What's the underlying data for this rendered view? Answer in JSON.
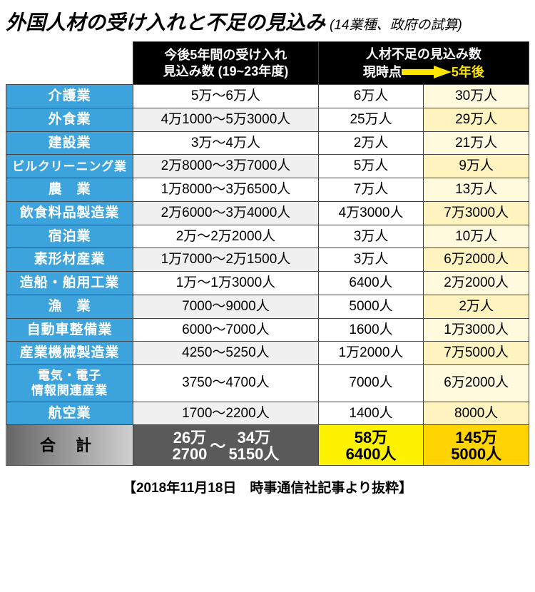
{
  "title": {
    "main": "外国人材の受け入れと不足の見込み",
    "sub": "(14業種、政府の試算)"
  },
  "header": {
    "intake_l1": "今後5年間の受け入れ",
    "intake_l2": "見込み数 (19~23年度)",
    "shortage_l1": "人材不足の見込み数",
    "now": "現時点",
    "later": "5年後"
  },
  "rows": [
    {
      "industry": "介護業",
      "intake": "5万～6万人",
      "now": "6万人",
      "later": "30万人"
    },
    {
      "industry": "外食業",
      "intake": "4万1000～5万3000人",
      "now": "25万人",
      "later": "29万人"
    },
    {
      "industry": "建設業",
      "intake": "3万～4万人",
      "now": "2万人",
      "later": "21万人"
    },
    {
      "industry": "ビルクリーニング業",
      "intake": "2万8000～3万7000人",
      "now": "5万人",
      "later": "9万人"
    },
    {
      "industry": "農　業",
      "intake": "1万8000～3万6500人",
      "now": "7万人",
      "later": "13万人"
    },
    {
      "industry": "飲食料品製造業",
      "intake": "2万6000～3万4000人",
      "now": "4万3000人",
      "later": "7万3000人"
    },
    {
      "industry": "宿泊業",
      "intake": "2万～2万2000人",
      "now": "3万人",
      "later": "10万人"
    },
    {
      "industry": "素形材産業",
      "intake": "1万7000～2万1500人",
      "now": "3万人",
      "later": "6万2000人"
    },
    {
      "industry": "造船・舶用工業",
      "intake": "1万～1万3000人",
      "now": "6400人",
      "later": "2万2000人"
    },
    {
      "industry": "漁　業",
      "intake": "7000～9000人",
      "now": "5000人",
      "later": "2万人"
    },
    {
      "industry": "自動車整備業",
      "intake": "6000～7000人",
      "now": "1600人",
      "later": "1万3000人"
    },
    {
      "industry": "産業機械製造業",
      "intake": "4250～5250人",
      "now": "1万2000人",
      "later": "7万5000人"
    },
    {
      "industry": "電気・電子\n情報関連産業",
      "intake": "3750～4700人",
      "now": "7000人",
      "later": "6万2000人"
    },
    {
      "industry": "航空業",
      "intake": "1700～2200人",
      "now": "1400人",
      "later": "8000人"
    }
  ],
  "total": {
    "label": "合 計",
    "intake_top_a": "26万",
    "intake_top_b": "34万",
    "intake_bot_a": "2700",
    "intake_bot_b": "5150人",
    "tilde": "～",
    "now_top": "58万",
    "now_bot": "6400人",
    "later_top": "145万",
    "later_bot": "5000人"
  },
  "caption": "【2018年11月18日　時事通信社記事より抜粋】",
  "colors": {
    "industry_bg": "#3da3dc",
    "later_bg": "#fffade",
    "later_bg_alt": "#fff3bf",
    "arrow": "#ffe600"
  }
}
